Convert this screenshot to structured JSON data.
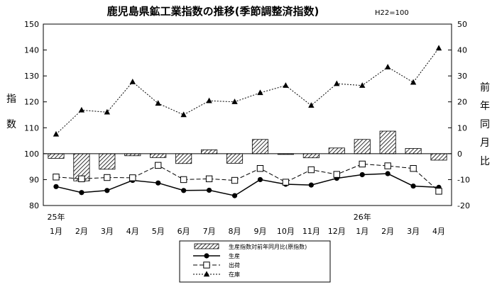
{
  "chart_data": {
    "type": "bar+line",
    "title": "鹿児島県鉱工業指数の推移(季節調整済指数)",
    "subtitle": "H22=100",
    "ylabel_left": [
      "指",
      "数"
    ],
    "ylabel_right": [
      "前",
      "年",
      "同",
      "月",
      "比"
    ],
    "year_labels": [
      {
        "index": 0,
        "label": "25年"
      },
      {
        "index": 12,
        "label": "26年"
      }
    ],
    "categories": [
      "1月",
      "2月",
      "3月",
      "4月",
      "5月",
      "6月",
      "7月",
      "8月",
      "9月",
      "10月",
      "11月",
      "12月",
      "1月",
      "2月",
      "3月",
      "4月"
    ],
    "y_left": {
      "min": 80,
      "max": 150,
      "ticks": [
        80,
        90,
        100,
        110,
        120,
        130,
        140,
        150
      ]
    },
    "y_right": {
      "min": -20,
      "max": 50,
      "ticks": [
        -20,
        -10,
        0,
        10,
        20,
        30,
        40,
        50
      ]
    },
    "bars": {
      "name": "生産指数対前年同月比(原指数)",
      "axis": "right",
      "values": [
        -1.8,
        -10.5,
        -6.0,
        -0.8,
        -1.5,
        -3.8,
        1.5,
        -3.7,
        5.5,
        -0.3,
        -1.6,
        2.2,
        5.5,
        8.7,
        2.0,
        -2.5
      ]
    },
    "series": [
      {
        "name": "生産",
        "axis": "left",
        "marker": "filled-circle",
        "line": "solid",
        "values": [
          87.3,
          85.0,
          85.8,
          89.7,
          88.7,
          85.8,
          85.9,
          83.8,
          90.0,
          88.2,
          87.9,
          90.5,
          91.9,
          92.3,
          87.5,
          87.0
        ]
      },
      {
        "name": "出荷",
        "axis": "left",
        "marker": "open-square",
        "line": "dashed",
        "values": [
          91.0,
          90.3,
          90.8,
          90.7,
          95.5,
          90.0,
          90.3,
          89.7,
          94.3,
          89.0,
          93.8,
          92.0,
          96.0,
          95.3,
          94.3,
          85.5
        ]
      },
      {
        "name": "在庫",
        "axis": "left",
        "marker": "filled-triangle",
        "line": "dotted",
        "values": [
          107.5,
          116.8,
          116.0,
          127.7,
          119.4,
          115.0,
          120.4,
          120.0,
          123.5,
          126.3,
          118.6,
          127.0,
          126.3,
          133.4,
          127.5,
          140.7
        ]
      }
    ],
    "grid": false,
    "legend_position": "bottom-center"
  }
}
